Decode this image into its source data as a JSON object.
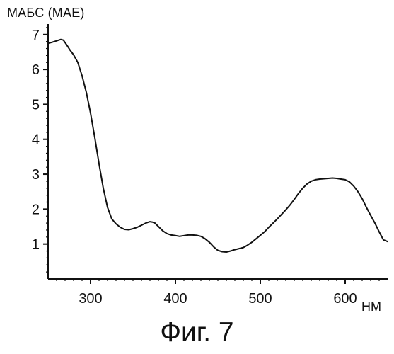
{
  "figure": {
    "caption": "Фиг. 7"
  },
  "chart_data": {
    "type": "line",
    "title": "",
    "xlabel": "НМ",
    "ylabel": "МАБС (МАЕ)",
    "xlim": [
      250,
      650
    ],
    "ylim": [
      0,
      7.3
    ],
    "x_ticks": [
      300,
      400,
      500,
      600
    ],
    "y_ticks": [
      1,
      2,
      3,
      4,
      5,
      6,
      7
    ],
    "grid": false,
    "legend": "none",
    "line_color": "#111111",
    "series": [
      {
        "x": [
          250,
          255,
          260,
          265,
          268,
          272,
          276,
          280,
          285,
          290,
          295,
          300,
          305,
          310,
          315,
          320,
          325,
          330,
          335,
          340,
          345,
          350,
          355,
          360,
          365,
          370,
          375,
          380,
          385,
          390,
          395,
          400,
          405,
          410,
          415,
          420,
          425,
          430,
          435,
          440,
          445,
          450,
          455,
          460,
          465,
          470,
          475,
          480,
          485,
          490,
          495,
          500,
          505,
          510,
          515,
          520,
          525,
          530,
          535,
          540,
          545,
          550,
          555,
          560,
          565,
          570,
          575,
          580,
          585,
          590,
          595,
          600,
          605,
          610,
          615,
          620,
          625,
          630,
          635,
          640,
          645,
          650
        ],
        "y": [
          6.75,
          6.78,
          6.82,
          6.86,
          6.84,
          6.7,
          6.55,
          6.42,
          6.2,
          5.82,
          5.35,
          4.75,
          4.05,
          3.3,
          2.6,
          2.05,
          1.72,
          1.58,
          1.48,
          1.42,
          1.41,
          1.44,
          1.48,
          1.54,
          1.6,
          1.64,
          1.62,
          1.5,
          1.38,
          1.3,
          1.26,
          1.24,
          1.22,
          1.24,
          1.26,
          1.26,
          1.25,
          1.22,
          1.15,
          1.05,
          0.92,
          0.82,
          0.78,
          0.77,
          0.8,
          0.84,
          0.87,
          0.9,
          0.97,
          1.05,
          1.15,
          1.25,
          1.35,
          1.48,
          1.6,
          1.72,
          1.85,
          1.98,
          2.12,
          2.28,
          2.45,
          2.6,
          2.72,
          2.8,
          2.84,
          2.86,
          2.87,
          2.88,
          2.89,
          2.88,
          2.86,
          2.84,
          2.78,
          2.66,
          2.5,
          2.3,
          2.05,
          1.82,
          1.6,
          1.35,
          1.12,
          1.07
        ]
      }
    ]
  }
}
